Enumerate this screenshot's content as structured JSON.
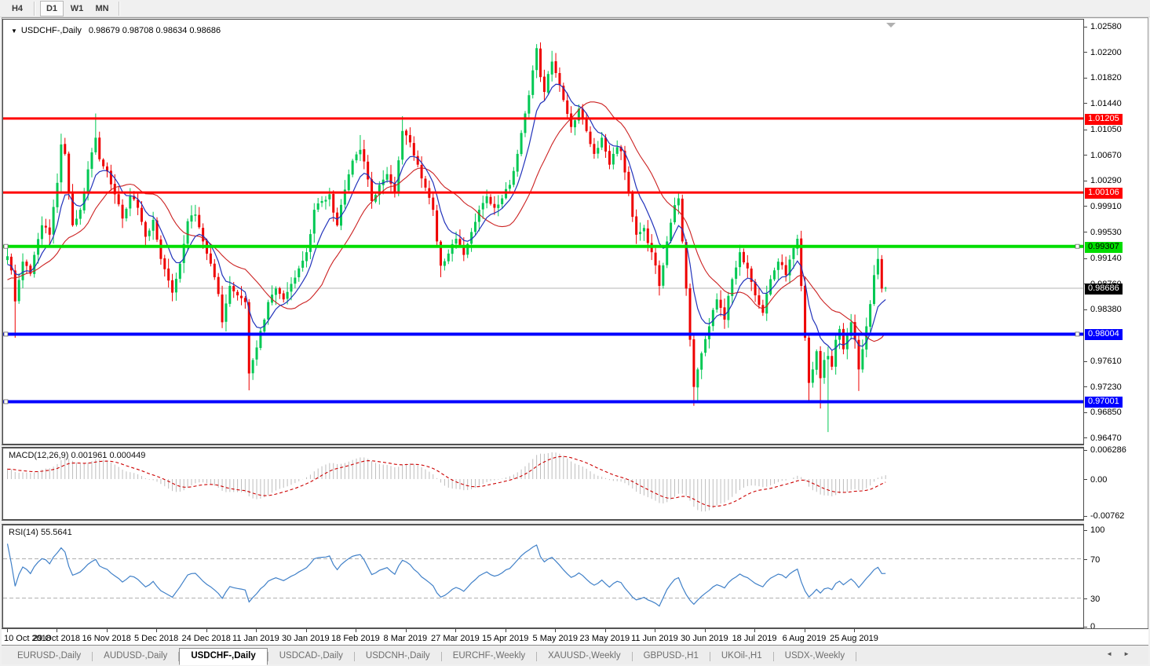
{
  "toolbar": {
    "items": [
      {
        "type": "button",
        "label": "H4",
        "active": false
      },
      {
        "type": "sep"
      },
      {
        "type": "button",
        "label": "D1",
        "active": true
      },
      {
        "type": "button",
        "label": "W1",
        "active": false
      },
      {
        "type": "button",
        "label": "MN",
        "active": false
      },
      {
        "type": "sep"
      }
    ]
  },
  "tab_bar": {
    "tabs": [
      {
        "label": "EURUSD-,Daily",
        "active": false
      },
      {
        "label": "AUDUSD-,Daily",
        "active": false
      },
      {
        "label": "USDCHF-,Daily",
        "active": true
      },
      {
        "label": "USDCAD-,Daily",
        "active": false
      },
      {
        "label": "USDCNH-,Daily",
        "active": false
      },
      {
        "label": "EURCHF-,Weekly",
        "active": false
      },
      {
        "label": "XAUUSD-,Weekly",
        "active": false
      },
      {
        "label": "GBPUSD-,H1",
        "active": false
      },
      {
        "label": "UKOil-,H1",
        "active": false
      },
      {
        "label": "USDX-,Weekly",
        "active": false
      }
    ],
    "scroll_left": "◄",
    "scroll_right": "►"
  },
  "chart_data": {
    "type": "candlestick",
    "title": "USDCHF-,Daily",
    "ohlc_text": "0.98679 0.98708 0.98634 0.98686",
    "bars": 230,
    "y_ticks": [
      "1.02580",
      "1.02200",
      "1.01820",
      "1.01440",
      "1.01050",
      "1.00670",
      "1.00290",
      "0.99910",
      "0.99530",
      "0.99140",
      "0.98760",
      "0.98380",
      "0.97610",
      "0.97230",
      "0.96850",
      "0.96470"
    ],
    "price_lines": [
      {
        "price": "1.01205",
        "color": "#ff0000",
        "text_color": "#ffffff",
        "width": 3,
        "left_handle": false,
        "right_handle": false
      },
      {
        "price": "1.00106",
        "color": "#ff0000",
        "text_color": "#ffffff",
        "width": 3,
        "left_handle": false,
        "right_handle": false
      },
      {
        "price": "0.99307",
        "color": "#00dd00",
        "text_color": "#000000",
        "width": 4,
        "left_handle": true,
        "right_handle": true
      },
      {
        "price": "0.98004",
        "color": "#0000ff",
        "text_color": "#ffffff",
        "width": 4,
        "left_handle": true,
        "right_handle": true
      },
      {
        "price": "0.97001",
        "color": "#0000ff",
        "text_color": "#ffffff",
        "width": 4,
        "left_handle": true,
        "right_handle": false
      }
    ],
    "current_price": "0.98686",
    "x_labels": [
      {
        "bar": 0,
        "label": "10 Oct 2018"
      },
      {
        "bar": 13,
        "label": "29 Oct 2018"
      },
      {
        "bar": 26,
        "label": "16 Nov 2018"
      },
      {
        "bar": 39,
        "label": "5 Dec 2018"
      },
      {
        "bar": 52,
        "label": "24 Dec 2018"
      },
      {
        "bar": 65,
        "label": "11 Jan 2019"
      },
      {
        "bar": 78,
        "label": "30 Jan 2019"
      },
      {
        "bar": 91,
        "label": "18 Feb 2019"
      },
      {
        "bar": 104,
        "label": "8 Mar 2019"
      },
      {
        "bar": 117,
        "label": "27 Mar 2019"
      },
      {
        "bar": 130,
        "label": "15 Apr 2019"
      },
      {
        "bar": 143,
        "label": "5 May 2019"
      },
      {
        "bar": 156,
        "label": "23 May 2019"
      },
      {
        "bar": 169,
        "label": "11 Jun 2019"
      },
      {
        "bar": 182,
        "label": "30 Jun 2019"
      },
      {
        "bar": 195,
        "label": "18 Jul 2019"
      },
      {
        "bar": 208,
        "label": "6 Aug 2019"
      },
      {
        "bar": 221,
        "label": "25 Aug 2019"
      }
    ],
    "close_path": [
      [
        0,
        0.9916
      ],
      [
        1,
        0.9895
      ],
      [
        2,
        0.9849
      ],
      [
        4,
        0.9908
      ],
      [
        6,
        0.989
      ],
      [
        9,
        0.9962
      ],
      [
        11,
        0.9948
      ],
      [
        13,
        1.0025
      ],
      [
        14,
        1.0082
      ],
      [
        15,
        1.0068
      ],
      [
        17,
        0.9962
      ],
      [
        19,
        0.9985
      ],
      [
        21,
        1.0045
      ],
      [
        23,
        1.0092
      ],
      [
        24,
        1.006
      ],
      [
        26,
        1.0042
      ],
      [
        28,
        1.0008
      ],
      [
        30,
        0.9972
      ],
      [
        32,
        1.0005
      ],
      [
        34,
        0.9988
      ],
      [
        36,
        0.9945
      ],
      [
        38,
        0.997
      ],
      [
        40,
        0.9912
      ],
      [
        42,
        0.988
      ],
      [
        43,
        0.9862
      ],
      [
        45,
        0.9905
      ],
      [
        47,
        0.9968
      ],
      [
        49,
        0.9978
      ],
      [
        51,
        0.9938
      ],
      [
        53,
        0.9905
      ],
      [
        55,
        0.986
      ],
      [
        56,
        0.9818
      ],
      [
        58,
        0.9872
      ],
      [
        60,
        0.9858
      ],
      [
        62,
        0.9848
      ],
      [
        63,
        0.9742
      ],
      [
        64,
        0.9762
      ],
      [
        66,
        0.9805
      ],
      [
        68,
        0.9848
      ],
      [
        70,
        0.9868
      ],
      [
        72,
        0.9852
      ],
      [
        74,
        0.9875
      ],
      [
        76,
        0.9898
      ],
      [
        78,
        0.9922
      ],
      [
        80,
        0.9985
      ],
      [
        82,
        0.9998
      ],
      [
        84,
        1.0008
      ],
      [
        86,
        0.9962
      ],
      [
        88,
        1.0015
      ],
      [
        90,
        1.0058
      ],
      [
        92,
        1.0074
      ],
      [
        94,
        1.003
      ],
      [
        95,
        0.9998
      ],
      [
        97,
        1.0022
      ],
      [
        99,
        1.0038
      ],
      [
        101,
        1.0012
      ],
      [
        103,
        1.0102
      ],
      [
        105,
        1.0085
      ],
      [
        107,
        1.0052
      ],
      [
        109,
        1.0018
      ],
      [
        111,
        0.9985
      ],
      [
        113,
        0.9902
      ],
      [
        115,
        0.992
      ],
      [
        117,
        0.9942
      ],
      [
        119,
        0.9918
      ],
      [
        121,
        0.9952
      ],
      [
        123,
        0.9985
      ],
      [
        125,
        1.0005
      ],
      [
        127,
        0.9988
      ],
      [
        129,
        1.0002
      ],
      [
        131,
        1.0022
      ],
      [
        133,
        1.0068
      ],
      [
        135,
        1.0128
      ],
      [
        137,
        1.0192
      ],
      [
        138,
        1.0225
      ],
      [
        139,
        1.0182
      ],
      [
        140,
        1.016
      ],
      [
        142,
        1.0205
      ],
      [
        143,
        1.0188
      ],
      [
        145,
        1.0148
      ],
      [
        147,
        1.0108
      ],
      [
        149,
        1.0135
      ],
      [
        151,
        1.0102
      ],
      [
        153,
        1.0068
      ],
      [
        155,
        1.0092
      ],
      [
        157,
        1.0052
      ],
      [
        159,
        1.0078
      ],
      [
        160,
        1.0072
      ],
      [
        162,
        1.0012
      ],
      [
        164,
        0.9948
      ],
      [
        166,
        0.9958
      ],
      [
        168,
        0.9922
      ],
      [
        170,
        0.9872
      ],
      [
        172,
        0.9938
      ],
      [
        174,
        0.9992
      ],
      [
        175,
        1.0002
      ],
      [
        176,
        0.9938
      ],
      [
        177,
        0.9868
      ],
      [
        178,
        0.9792
      ],
      [
        179,
        0.9722
      ],
      [
        180,
        0.9748
      ],
      [
        181,
        0.9772
      ],
      [
        183,
        0.9812
      ],
      [
        185,
        0.9852
      ],
      [
        187,
        0.9822
      ],
      [
        189,
        0.9882
      ],
      [
        191,
        0.9922
      ],
      [
        193,
        0.9898
      ],
      [
        195,
        0.9858
      ],
      [
        197,
        0.9832
      ],
      [
        199,
        0.9882
      ],
      [
        201,
        0.9908
      ],
      [
        203,
        0.9888
      ],
      [
        205,
        0.9928
      ],
      [
        206,
        0.9942
      ],
      [
        207,
        0.9872
      ],
      [
        208,
        0.9795
      ],
      [
        209,
        0.9728
      ],
      [
        210,
        0.9748
      ],
      [
        211,
        0.9775
      ],
      [
        212,
        0.9735
      ],
      [
        213,
        0.9762
      ],
      [
        214,
        0.9768
      ],
      [
        215,
        0.9752
      ],
      [
        216,
        0.9792
      ],
      [
        217,
        0.9808
      ],
      [
        218,
        0.9778
      ],
      [
        220,
        0.9818
      ],
      [
        221,
        0.9792
      ],
      [
        222,
        0.9748
      ],
      [
        223,
        0.9778
      ],
      [
        224,
        0.9812
      ],
      [
        225,
        0.9845
      ],
      [
        226,
        0.9888
      ],
      [
        227,
        0.9912
      ],
      [
        228,
        0.9868
      ],
      [
        229,
        0.98686
      ]
    ],
    "wick_overrides": {
      "2": {
        "l": 0.9795
      },
      "14": {
        "h": 1.0098
      },
      "23": {
        "h": 1.0128
      },
      "63": {
        "l": 0.9717
      },
      "92": {
        "h": 1.0096
      },
      "103": {
        "h": 1.0124
      },
      "113": {
        "l": 0.9885
      },
      "138": {
        "h": 1.0231
      },
      "142": {
        "h": 1.0221
      },
      "175": {
        "h": 1.0012
      },
      "179": {
        "l": 0.9694
      },
      "180": {
        "l": 0.97
      },
      "206": {
        "h": 0.9948
      },
      "209": {
        "l": 0.97
      },
      "212": {
        "l": 0.969
      },
      "214": {
        "l": 0.9655
      },
      "222": {
        "l": 0.9716
      },
      "227": {
        "h": 0.9928
      }
    },
    "last_bar": {
      "o": 0.98679,
      "h": 0.98708,
      "l": 0.98634,
      "c": 0.98686
    },
    "warmup": {
      "bars": 30,
      "from": 0.98,
      "to": 0.9916
    },
    "indicators": {
      "ma_fast": {
        "type": "EMA",
        "period": 8,
        "color": "#2233bb"
      },
      "ma_slow": {
        "type": "SMA",
        "period": 20,
        "color": "#cc2222"
      },
      "macd": {
        "label": "MACD(12,26,9)",
        "fast": 12,
        "slow": 26,
        "signal": 9,
        "value": "0.001961",
        "signal_value": "0.000449",
        "axis_max": "0.006286",
        "axis_zero": "0.00",
        "axis_min": "-0.00762",
        "hist_color": "#bdbdbd",
        "signal_color": "#cc0000"
      },
      "rsi": {
        "label": "RSI(14)",
        "period": 14,
        "value": "55.5641",
        "color": "#4080c8",
        "levels": [
          70,
          30
        ],
        "axis_labels": [
          "100",
          "70",
          "30",
          "0"
        ]
      }
    },
    "colors": {
      "bull": "#00c853",
      "bear": "#ee0000",
      "current_line": "#b4b4b4",
      "current_label_bg": "#000000",
      "shift_marker": "#b0b0b0"
    }
  }
}
